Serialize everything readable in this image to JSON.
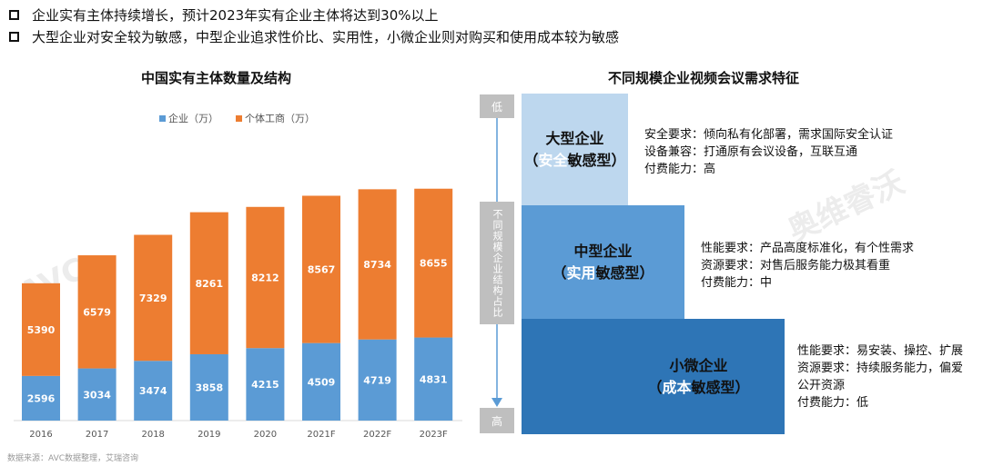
{
  "bullets": [
    "企业实有主体持续增长，预计2023年实有企业主体将达到30%以上",
    "大型企业对安全较为敏感，中型企业追求性价比、实用性，小微企业则对购买和使用成本较为敏感"
  ],
  "watermark": "AVC REVO 奥维睿沃",
  "chart_data": {
    "type": "bar",
    "stacked": true,
    "title": "中国实有主体数量及结构",
    "categories": [
      "2016",
      "2017",
      "2018",
      "2019",
      "2020",
      "2021F",
      "2022F",
      "2023F"
    ],
    "series": [
      {
        "name": "企业（万）",
        "color": "#5b9bd5",
        "values": [
          2596,
          3034,
          3474,
          3858,
          4215,
          4509,
          4719,
          4831
        ]
      },
      {
        "name": "个体工商（万）",
        "color": "#ed7d31",
        "values": [
          5390,
          6579,
          7329,
          8261,
          8212,
          8567,
          8734,
          8655
        ]
      }
    ],
    "ylim": [
      0,
      14000
    ],
    "legend": "top",
    "grid": false
  },
  "source": "数据来源：AVC数据整理，艾瑞咨询",
  "right": {
    "title": "不同规模企业视频会议需求特征",
    "low": "低",
    "high": "高",
    "axis_label": "不同规模企业结构占比",
    "tiers": [
      {
        "name": "大型企业",
        "open": "（",
        "hl": "安全",
        "rest": "敏感型）",
        "color": "#bdd7ee",
        "lines": [
          "安全要求：倾向私有化部署，需求国际安全认证",
          "设备兼容：打通原有会议设备，互联互通",
          "付费能力：高"
        ]
      },
      {
        "name": "中型企业",
        "open": "（",
        "hl": "实用",
        "rest": "敏感型）",
        "color": "#5b9bd5",
        "lines": [
          "性能要求：产品高度标准化，有个性需求",
          "资源要求：对售后服务能力极其看重",
          "付费能力：中"
        ]
      },
      {
        "name": "小微企业",
        "open": "（",
        "hl": "成本",
        "rest": "敏感型）",
        "color": "#2e75b6",
        "lines": [
          "性能要求：易安装、操控、扩展",
          "资源要求：持续服务能力，偏爱",
          "公开资源",
          "付费能力：低"
        ]
      }
    ]
  }
}
